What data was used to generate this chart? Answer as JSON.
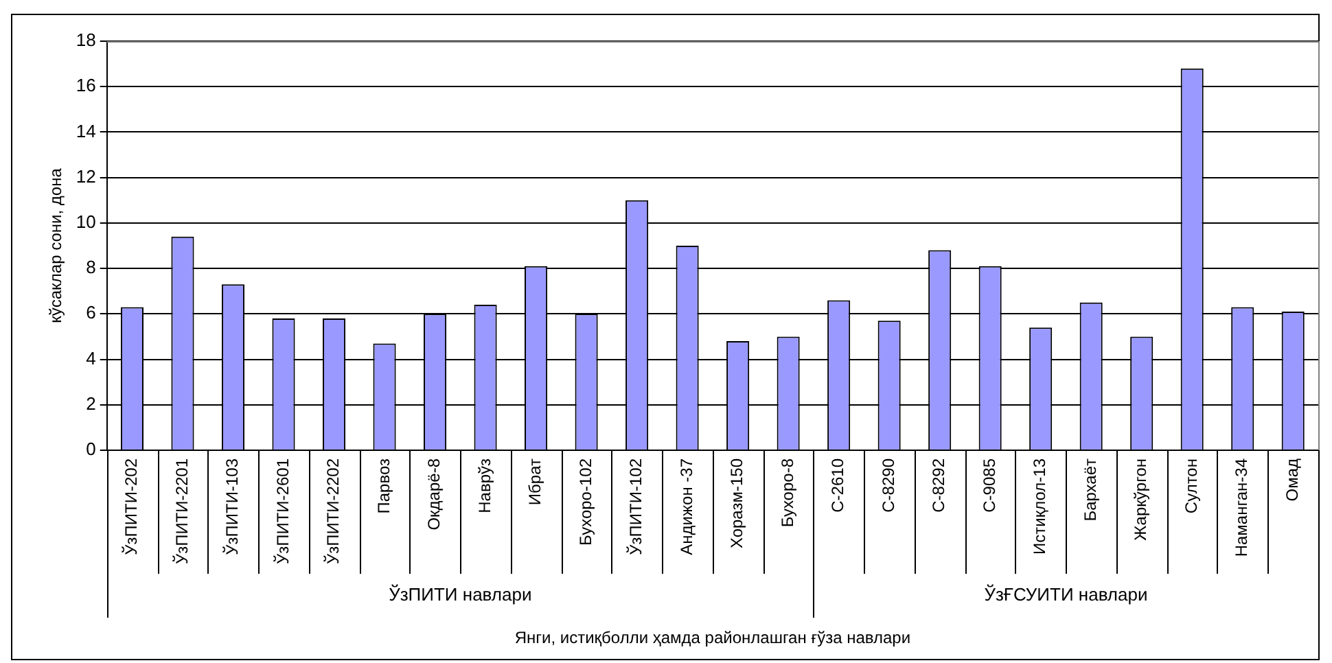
{
  "chart_data": {
    "type": "bar",
    "xlabel": "Янги, истиқболли ҳамда районлашган ғўза навлари",
    "ylabel": "кўсаклар сони, дона",
    "categories": [
      "ЎзПИТИ-202",
      "ЎзПИТИ-2201",
      "ЎзПИТИ-103",
      "ЎзПИТИ-2601",
      "ЎзПИТИ-2202",
      "Парвоз",
      "Окдарё-8",
      "Наврўз",
      "Ибрат",
      "Бухоро-102",
      "ЎзПИТИ-102",
      "Андижон -37",
      "Хоразм-150",
      "Бухоро-8",
      "С-2610",
      "С-8290",
      "С-8292",
      "С-9085",
      "Истиқлол-13",
      "Бархаёт",
      "Жаркўргон",
      "Султон",
      "Наманган-34",
      "Омад"
    ],
    "values": [
      6.3,
      9.4,
      7.3,
      5.8,
      5.8,
      4.7,
      6.0,
      6.4,
      8.1,
      6.0,
      11.0,
      9.0,
      4.8,
      5.0,
      6.6,
      5.7,
      8.8,
      8.1,
      5.4,
      6.5,
      5.0,
      16.8,
      6.3,
      6.1
    ],
    "color": "#9999ff",
    "ylim": [
      0,
      18
    ],
    "yticks": [
      0,
      2,
      4,
      6,
      8,
      10,
      12,
      14,
      16,
      18
    ],
    "grid": "y",
    "annotations": [
      "ЎзПИТИ навлари",
      "ЎзҒСУИТИ навлари"
    ]
  }
}
